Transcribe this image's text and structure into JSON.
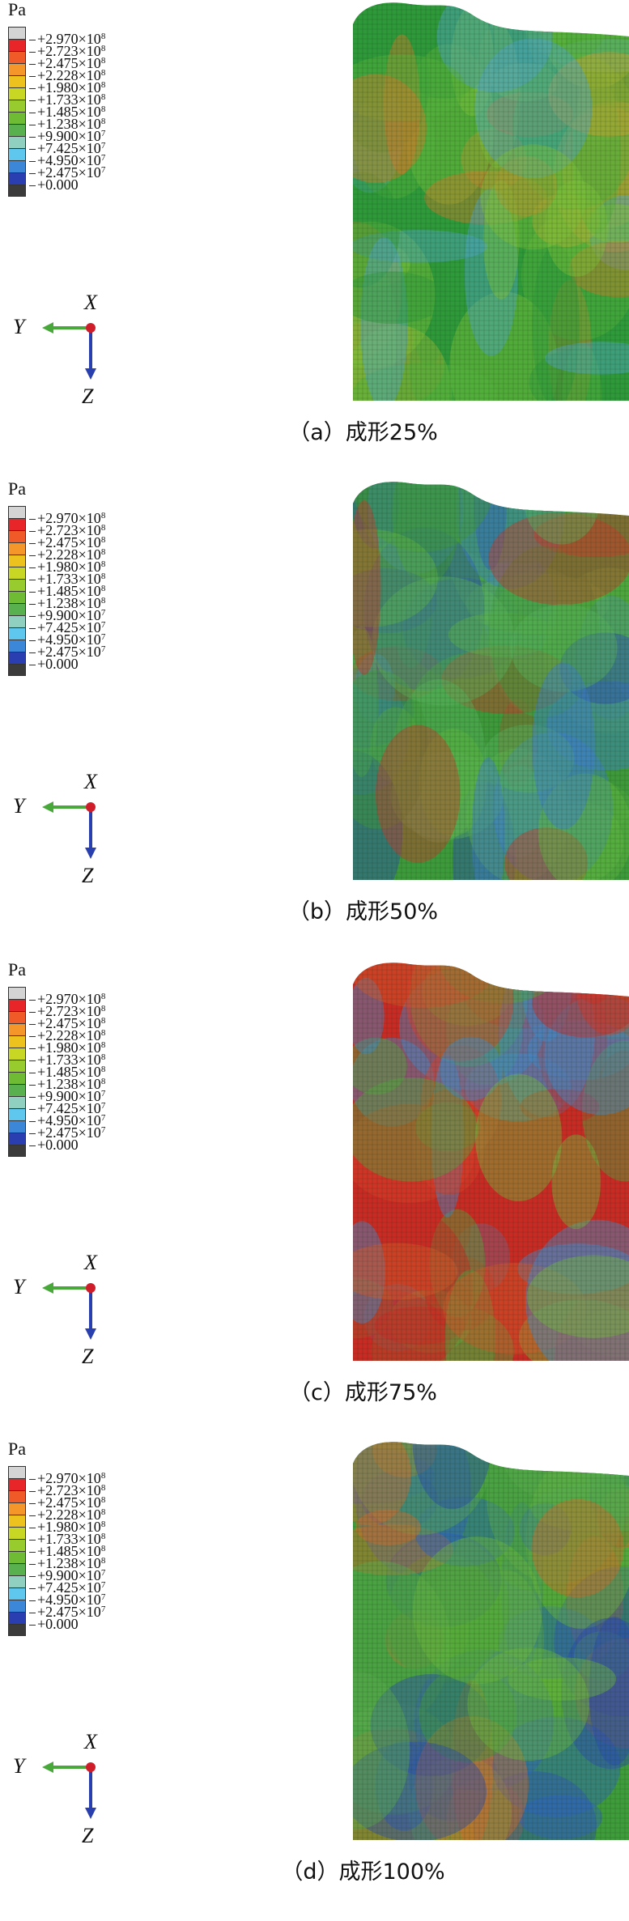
{
  "legend": {
    "unit": "Pa",
    "colors": [
      "#d4d4d4",
      "#e8262a",
      "#ef5a28",
      "#f5962a",
      "#eec21e",
      "#c8d624",
      "#98cc2e",
      "#6fbc34",
      "#58b04f",
      "#8fd0c0",
      "#5fc6ee",
      "#3d87d8",
      "#2b3eb1",
      "#3b3b3b"
    ],
    "labels": [
      {
        "mantissa": "+2.970",
        "exp": "8"
      },
      {
        "mantissa": "+2.723",
        "exp": "8"
      },
      {
        "mantissa": "+2.475",
        "exp": "8"
      },
      {
        "mantissa": "+2.228",
        "exp": "8"
      },
      {
        "mantissa": "+1.980",
        "exp": "8"
      },
      {
        "mantissa": "+1.733",
        "exp": "8"
      },
      {
        "mantissa": "+1.485",
        "exp": "8"
      },
      {
        "mantissa": "+1.238",
        "exp": "8"
      },
      {
        "mantissa": "+9.900",
        "exp": "7"
      },
      {
        "mantissa": "+7.425",
        "exp": "7"
      },
      {
        "mantissa": "+4.950",
        "exp": "7"
      },
      {
        "mantissa": "+2.475",
        "exp": "7"
      },
      {
        "mantissa": "+0.000",
        "exp": ""
      }
    ]
  },
  "triad": {
    "x_label": "X",
    "y_label": "Y",
    "z_label": "Z"
  },
  "panels": [
    {
      "caption": "（a）成形25%",
      "dominant": "green-orange"
    },
    {
      "caption": "（b）成形50%",
      "dominant": "green-blue-red-edge"
    },
    {
      "caption": "（c）成形75%",
      "dominant": "red-green"
    },
    {
      "caption": "（d）成形100%",
      "dominant": "green-blue-orange"
    }
  ]
}
